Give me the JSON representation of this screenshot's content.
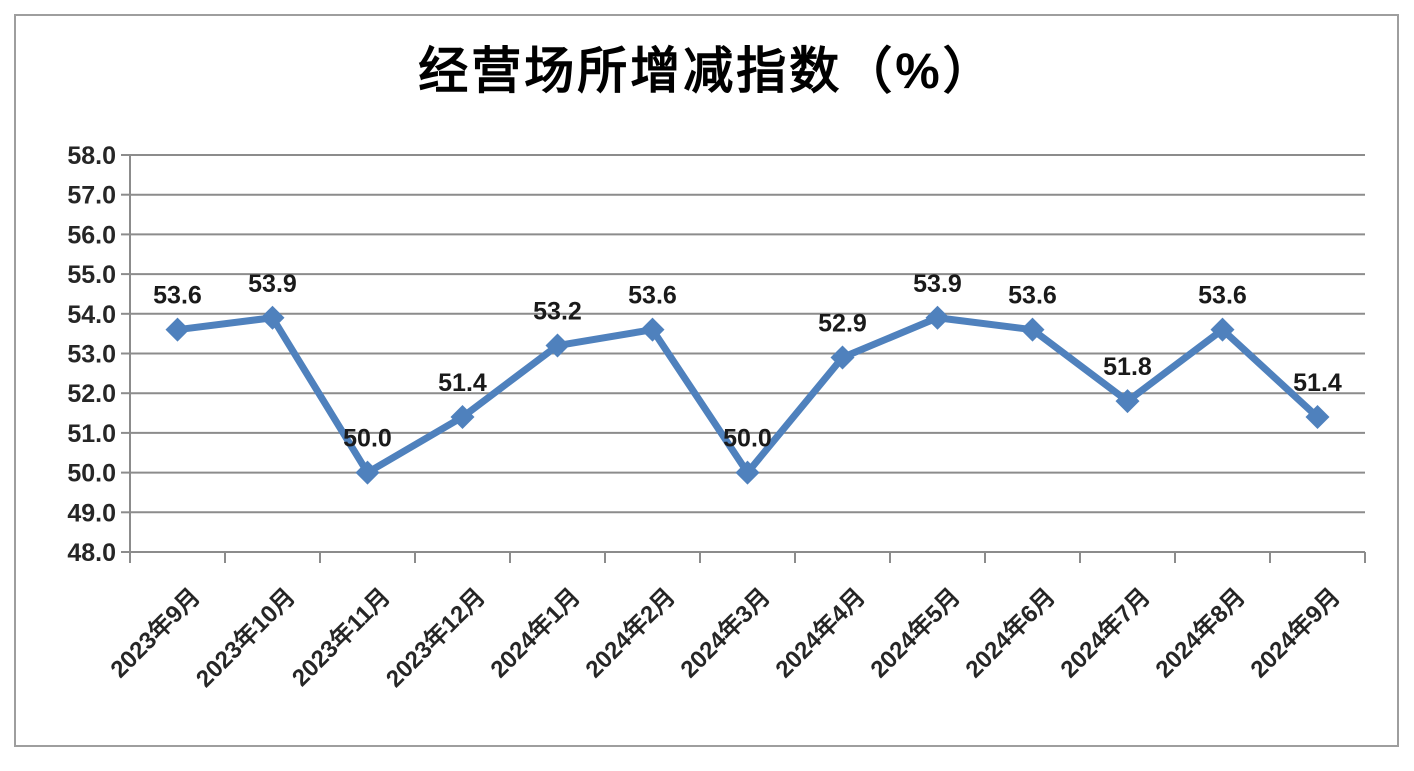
{
  "chart_data": {
    "type": "line",
    "title": "经营场所增减指数（%）",
    "categories": [
      "2023年9月",
      "2023年10月",
      "2023年11月",
      "2023年12月",
      "2024年1月",
      "2024年2月",
      "2024年3月",
      "2024年4月",
      "2024年5月",
      "2024年6月",
      "2024年7月",
      "2024年8月",
      "2024年9月"
    ],
    "values": [
      53.6,
      53.9,
      50.0,
      51.4,
      53.2,
      53.6,
      50.0,
      52.9,
      53.9,
      53.6,
      51.8,
      53.6,
      51.4
    ],
    "data_labels": [
      "53.6",
      "53.9",
      "50.0",
      "51.4",
      "53.2",
      "53.6",
      "50.0",
      "52.9",
      "53.9",
      "53.6",
      "51.8",
      "53.6",
      "51.4"
    ],
    "xlabel": "",
    "ylabel": "",
    "ylim": [
      48.0,
      58.0
    ],
    "ytick_step": 1.0,
    "ytick_labels": [
      "48.0",
      "49.0",
      "50.0",
      "51.0",
      "52.0",
      "53.0",
      "54.0",
      "55.0",
      "56.0",
      "57.0",
      "58.0"
    ],
    "grid": true,
    "legend": "none",
    "marker_style": "diamond",
    "colors": {
      "line": "#4F81BD",
      "marker": "#4F81BD",
      "grid": "#8C8C8C",
      "axis": "#8C8C8C",
      "tick_text": "#262626",
      "data_label_text": "#1A1A1A",
      "title_text": "#000000",
      "frame_border": "#9E9E9E",
      "background": "#FFFFFF"
    }
  }
}
